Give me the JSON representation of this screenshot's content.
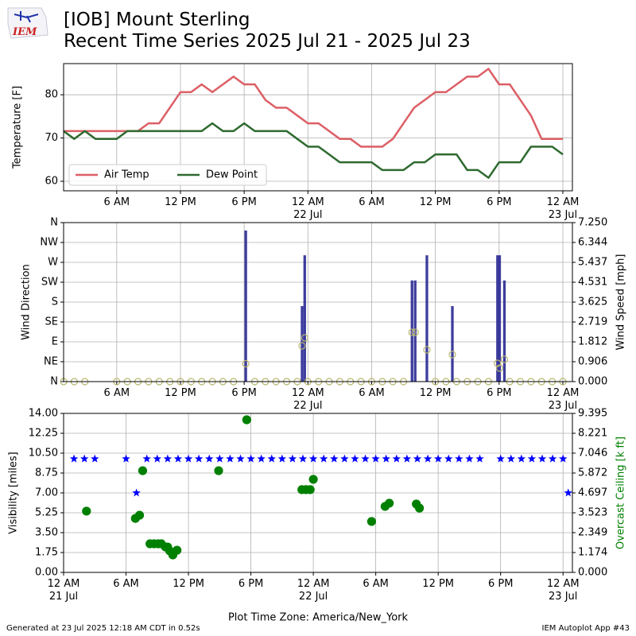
{
  "header": {
    "logo": "IEM",
    "title": "[IOB] Mount Sterling",
    "subtitle": "Recent Time Series 2025 Jul 21 - 2025 Jul 23"
  },
  "footer": {
    "left": "Generated at 23 Jul 2025 12:18 AM CDT in 0.52s",
    "right": "IEM Autoplot App #43"
  },
  "chart_data": [
    {
      "type": "line",
      "ylabel": "Temperature [F]",
      "grid": true,
      "legend": "lower left",
      "xlim": [
        1,
        48.9
      ],
      "xticks": [
        {
          "value": 6,
          "label": "6 AM"
        },
        {
          "value": 12,
          "label": "12 PM"
        },
        {
          "value": 18,
          "label": "6 PM"
        },
        {
          "value": 24,
          "label": "12 AM\n22 Jul"
        },
        {
          "value": 30,
          "label": "6 AM"
        },
        {
          "value": 36,
          "label": "12 PM"
        },
        {
          "value": 42,
          "label": "6 PM"
        },
        {
          "value": 48,
          "label": "12 AM\n23 Jul"
        }
      ],
      "ylim": [
        57.8,
        87.2
      ],
      "yticks": [
        60,
        70,
        80
      ],
      "x": [
        1,
        2,
        3,
        4,
        5,
        6,
        7,
        8,
        9,
        10,
        11,
        12,
        13,
        14,
        15,
        16,
        17,
        18,
        19,
        20,
        21,
        22,
        23,
        24,
        25,
        26,
        27,
        28,
        29,
        30,
        31,
        32,
        33,
        34,
        35,
        36,
        37,
        38,
        39,
        40,
        41,
        42,
        43,
        44,
        45,
        46,
        47,
        48
      ],
      "series": [
        {
          "name": "Air Temp",
          "color": "#dc5f66",
          "type": "line",
          "values": [
            71.6,
            71.6,
            71.6,
            71.6,
            71.6,
            71.6,
            71.6,
            71.6,
            73.4,
            73.4,
            77,
            80.6,
            80.6,
            82.4,
            80.6,
            82.4,
            84.2,
            82.4,
            82.4,
            78.8,
            77,
            77,
            75.2,
            73.4,
            73.4,
            71.6,
            69.8,
            69.8,
            68,
            68,
            68,
            69.8,
            73.4,
            77,
            78.8,
            80.6,
            80.6,
            82.4,
            84.2,
            84.2,
            86,
            82.4,
            82.4,
            78.8,
            75.2,
            69.8,
            69.8,
            69.8
          ]
        },
        {
          "name": "Dew Point",
          "color": "#2e6a30",
          "type": "line",
          "values": [
            71.6,
            69.8,
            71.6,
            69.8,
            69.8,
            69.8,
            71.6,
            71.6,
            71.6,
            71.6,
            71.6,
            71.6,
            71.6,
            71.6,
            73.4,
            71.6,
            71.6,
            73.4,
            71.6,
            71.6,
            71.6,
            71.6,
            69.8,
            68,
            68,
            66.2,
            64.4,
            64.4,
            64.4,
            64.4,
            62.6,
            62.6,
            62.6,
            64.4,
            64.4,
            66.2,
            66.2,
            66.2,
            62.6,
            62.6,
            60.8,
            64.4,
            64.4,
            64.4,
            68,
            68,
            68,
            66.2
          ]
        }
      ]
    },
    {
      "type": "bar",
      "ylabel": "Wind Direction",
      "y2label": "Wind Speed [mph]",
      "grid": true,
      "xlim": [
        1,
        48.9
      ],
      "xticks": [
        {
          "value": 6,
          "label": "6 AM"
        },
        {
          "value": 12,
          "label": "12 PM"
        },
        {
          "value": 18,
          "label": "6 PM"
        },
        {
          "value": 24,
          "label": "12 AM\n22 Jul"
        },
        {
          "value": 30,
          "label": "6 AM"
        },
        {
          "value": 36,
          "label": "12 PM"
        },
        {
          "value": 42,
          "label": "6 PM"
        },
        {
          "value": 48,
          "label": "12 AM\n23 Jul"
        }
      ],
      "ylim": [
        0,
        360
      ],
      "yticks": [
        {
          "value": 0,
          "label": "N"
        },
        {
          "value": 45,
          "label": "NE"
        },
        {
          "value": 90,
          "label": "E"
        },
        {
          "value": 135,
          "label": "SE"
        },
        {
          "value": 180,
          "label": "S"
        },
        {
          "value": 225,
          "label": "SW"
        },
        {
          "value": 270,
          "label": "W"
        },
        {
          "value": 315,
          "label": "NW"
        },
        {
          "value": 360,
          "label": "N"
        }
      ],
      "y2lim": [
        0,
        7.25
      ],
      "y2ticks": [
        {
          "value": 0,
          "label": "0.000"
        },
        0.906,
        1.812,
        2.719,
        3.625,
        4.531,
        5.437,
        6.344,
        {
          "value": 7.25,
          "label": "7.250"
        }
      ],
      "x": [
        1,
        2,
        3,
        6,
        7,
        8,
        9,
        10,
        11,
        12,
        13,
        14,
        15,
        16,
        17,
        18.15,
        19,
        20,
        21,
        22,
        23,
        23.45,
        23.7,
        24,
        25,
        26,
        27,
        28,
        29,
        30,
        31,
        32,
        33,
        33.8,
        34.1,
        35.2,
        36,
        37,
        37.6,
        38,
        39,
        40,
        41,
        41.85,
        42.05,
        42.5,
        43,
        44,
        45,
        46,
        47,
        48
      ],
      "series": [
        {
          "type": "bar",
          "color": "#333399",
          "values": [
            0,
            0,
            0,
            0,
            0,
            0,
            0,
            0,
            0,
            0,
            0,
            0,
            0,
            0,
            0,
            342,
            0,
            0,
            0,
            0,
            0,
            171,
            286,
            0,
            0,
            0,
            0,
            0,
            0,
            0,
            0,
            0,
            0,
            229,
            229,
            286,
            0,
            0,
            171,
            0,
            0,
            0,
            0,
            286,
            286,
            229,
            0,
            0,
            0,
            0,
            0,
            0
          ]
        },
        {
          "type": "scatter",
          "axis": "y2",
          "color": "#b8b66e",
          "marker": "circle",
          "filled": false,
          "values": [
            0,
            0,
            0,
            0,
            0,
            0,
            0,
            0,
            0,
            0,
            0,
            0,
            0,
            0,
            0,
            0.815,
            0,
            0,
            0,
            0,
            0,
            1.631,
            1.994,
            0,
            0,
            0,
            0,
            0,
            0,
            0,
            0,
            0,
            0,
            2.248,
            2.248,
            1.45,
            0,
            0,
            1.232,
            0,
            0,
            0,
            0,
            0.834,
            0.616,
            1.015,
            0,
            0,
            0,
            0,
            0,
            0
          ]
        }
      ]
    },
    {
      "type": "scatter",
      "ylabel": "Visibility [miles]",
      "y2label": "Overcast Ceiling [k ft]",
      "y2label_color": "#008000",
      "grid": true,
      "xlabel": "Plot Time Zone: America/New_York",
      "xlim": [
        0,
        48.9
      ],
      "xticks": [
        {
          "value": 0,
          "label": "12 AM\n21 Jul"
        },
        {
          "value": 6,
          "label": "6 AM"
        },
        {
          "value": 12,
          "label": "12 PM"
        },
        {
          "value": 18,
          "label": "6 PM"
        },
        {
          "value": 24,
          "label": "12 AM\n22 Jul"
        },
        {
          "value": 30,
          "label": "6 AM"
        },
        {
          "value": 36,
          "label": "12 PM"
        },
        {
          "value": 42,
          "label": "6 PM"
        },
        {
          "value": 48,
          "label": "12 AM\n23 Jul"
        }
      ],
      "ylim": [
        0,
        14
      ],
      "yticks": [
        {
          "value": 0,
          "label": "0.00"
        },
        1.75,
        {
          "value": 3.5,
          "label": "3.50"
        },
        5.25,
        {
          "value": 7,
          "label": "7.00"
        },
        8.75,
        {
          "value": 10.5,
          "label": "10.50"
        },
        12.25,
        {
          "value": 14,
          "label": "14.00"
        }
      ],
      "y2lim": [
        0,
        9.395
      ],
      "y2ticks": [
        {
          "value": 0,
          "label": "0.000"
        },
        1.174,
        2.349,
        3.523,
        4.697,
        5.872,
        7.046,
        8.221,
        9.395
      ],
      "series": [
        {
          "type": "scatter",
          "color": "#0000ff",
          "marker": "star",
          "filled": true,
          "x": [
            1,
            2,
            3,
            6,
            7,
            8,
            9,
            10,
            11,
            12,
            13,
            14,
            15,
            16,
            17,
            18,
            19,
            20,
            21,
            22,
            23,
            24,
            25,
            26,
            27,
            28,
            29,
            30,
            31,
            32,
            33,
            34,
            35,
            36,
            37,
            38,
            39,
            40,
            42,
            43,
            44,
            45,
            46,
            47,
            48,
            48.5
          ],
          "values": [
            10,
            10,
            10,
            10,
            7,
            10,
            10,
            10,
            10,
            10,
            10,
            10,
            10,
            10,
            10,
            10,
            10,
            10,
            10,
            10,
            10,
            10,
            10,
            10,
            10,
            10,
            10,
            10,
            10,
            10,
            10,
            10,
            10,
            10,
            10,
            10,
            10,
            10,
            10,
            10,
            10,
            10,
            10,
            10,
            10,
            7
          ]
        },
        {
          "type": "scatter",
          "axis": "y2",
          "color": "#008000",
          "marker": "circle",
          "filled": true,
          "x": [
            2.2,
            6.9,
            7.3,
            7.6,
            8.3,
            8.7,
            9.1,
            9.4,
            9.8,
            10.0,
            10.2,
            10.5,
            10.9,
            14.9,
            17.6,
            22.9,
            23.3,
            23.7,
            24.0,
            29.6,
            30.9,
            31.3,
            33.9,
            34.2
          ],
          "values": [
            3.62,
            3.19,
            3.38,
            6.01,
            1.69,
            1.69,
            1.69,
            1.69,
            1.5,
            1.5,
            1.27,
            1.03,
            1.31,
            6.01,
            9.02,
            4.89,
            4.89,
            4.89,
            5.5,
            3.01,
            3.9,
            4.09,
            4.04,
            3.8
          ]
        }
      ]
    }
  ]
}
